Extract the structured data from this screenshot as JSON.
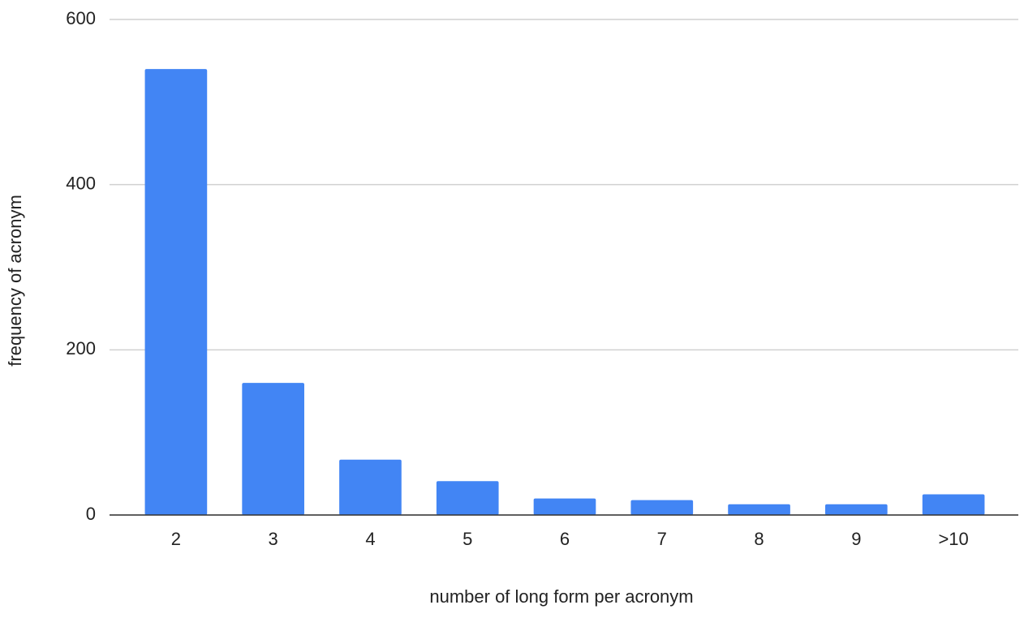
{
  "chart_data": {
    "type": "bar",
    "x_label": "number of long form per acronym",
    "y_label": "frequency of acronym",
    "categories": [
      "2",
      "3",
      "4",
      "5",
      "6",
      "7",
      "8",
      "9",
      ">10"
    ],
    "values": [
      540,
      160,
      67,
      41,
      20,
      18,
      13,
      13,
      25
    ],
    "color": "#4285f4",
    "ylim": [
      0,
      600
    ],
    "yticks": [
      0,
      200,
      400,
      600
    ],
    "grid": true
  }
}
